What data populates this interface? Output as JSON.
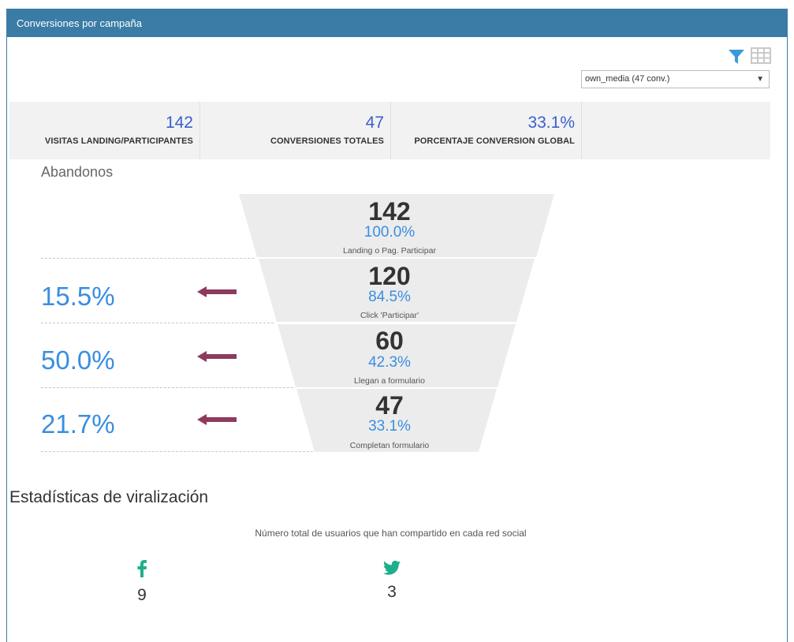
{
  "panel": {
    "title": "Conversiones por campaña"
  },
  "toolbar": {
    "filter_icon": "filter-icon",
    "table_icon": "table-icon",
    "accent": "#3a9ad9"
  },
  "campaign_select": {
    "value": "own_media (47 conv.)"
  },
  "kpis": [
    {
      "value": "142",
      "label": "VISITAS LANDING/PARTICIPANTES"
    },
    {
      "value": "47",
      "label": "CONVERSIONES TOTALES"
    },
    {
      "value": "33.1%",
      "label": "PORCENTAJE CONVERSION GLOBAL"
    }
  ],
  "funnel": {
    "title": "Abandonos",
    "stages": [
      {
        "count": "142",
        "pct": "100.0%",
        "label": "Landing o Pag. Participar"
      },
      {
        "count": "120",
        "pct": "84.5%",
        "label": "Click 'Participar'"
      },
      {
        "count": "60",
        "pct": "42.3%",
        "label": "Llegan a formulario"
      },
      {
        "count": "47",
        "pct": "33.1%",
        "label": "Completan formulario"
      }
    ],
    "dropoffs": [
      "15.5%",
      "50.0%",
      "21.7%"
    ],
    "colors": {
      "stage_fill": "#ececec",
      "drop_text": "#3a8ee0",
      "arrow": "#8e3a5c"
    }
  },
  "virality": {
    "title": "Estadísticas de viralización",
    "subtitle": "Número total de usuarios que han compartido en cada red social",
    "networks": [
      {
        "icon": "facebook-icon",
        "count": "9",
        "color": "#1fae8a"
      },
      {
        "icon": "twitter-icon",
        "count": "3",
        "color": "#1fae8a"
      }
    ]
  }
}
